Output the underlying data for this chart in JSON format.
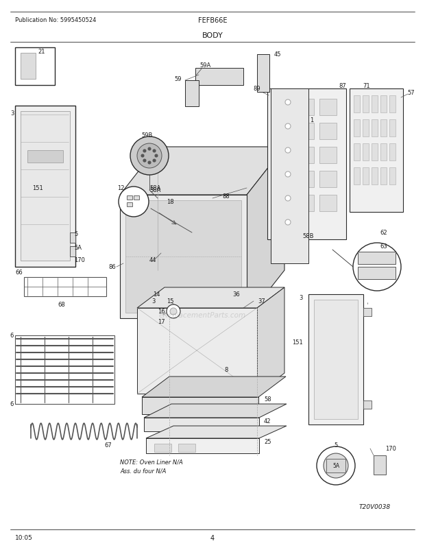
{
  "title_left": "Publication No: 5995450524",
  "title_center": "FEFB66E",
  "title_body": "BODY",
  "footer_left": "10:05",
  "footer_center": "4",
  "watermark": "eReplacementParts.com",
  "note_text": "NOTE: Oven Liner N/A\nAss. du four N/A",
  "ref_code": "T20V0038",
  "bg_color": "#ffffff",
  "text_color": "#1a1a1a",
  "line_color": "#2a2a2a",
  "light_gray": "#dddddd",
  "mid_gray": "#aaaaaa",
  "dark_gray": "#555555"
}
